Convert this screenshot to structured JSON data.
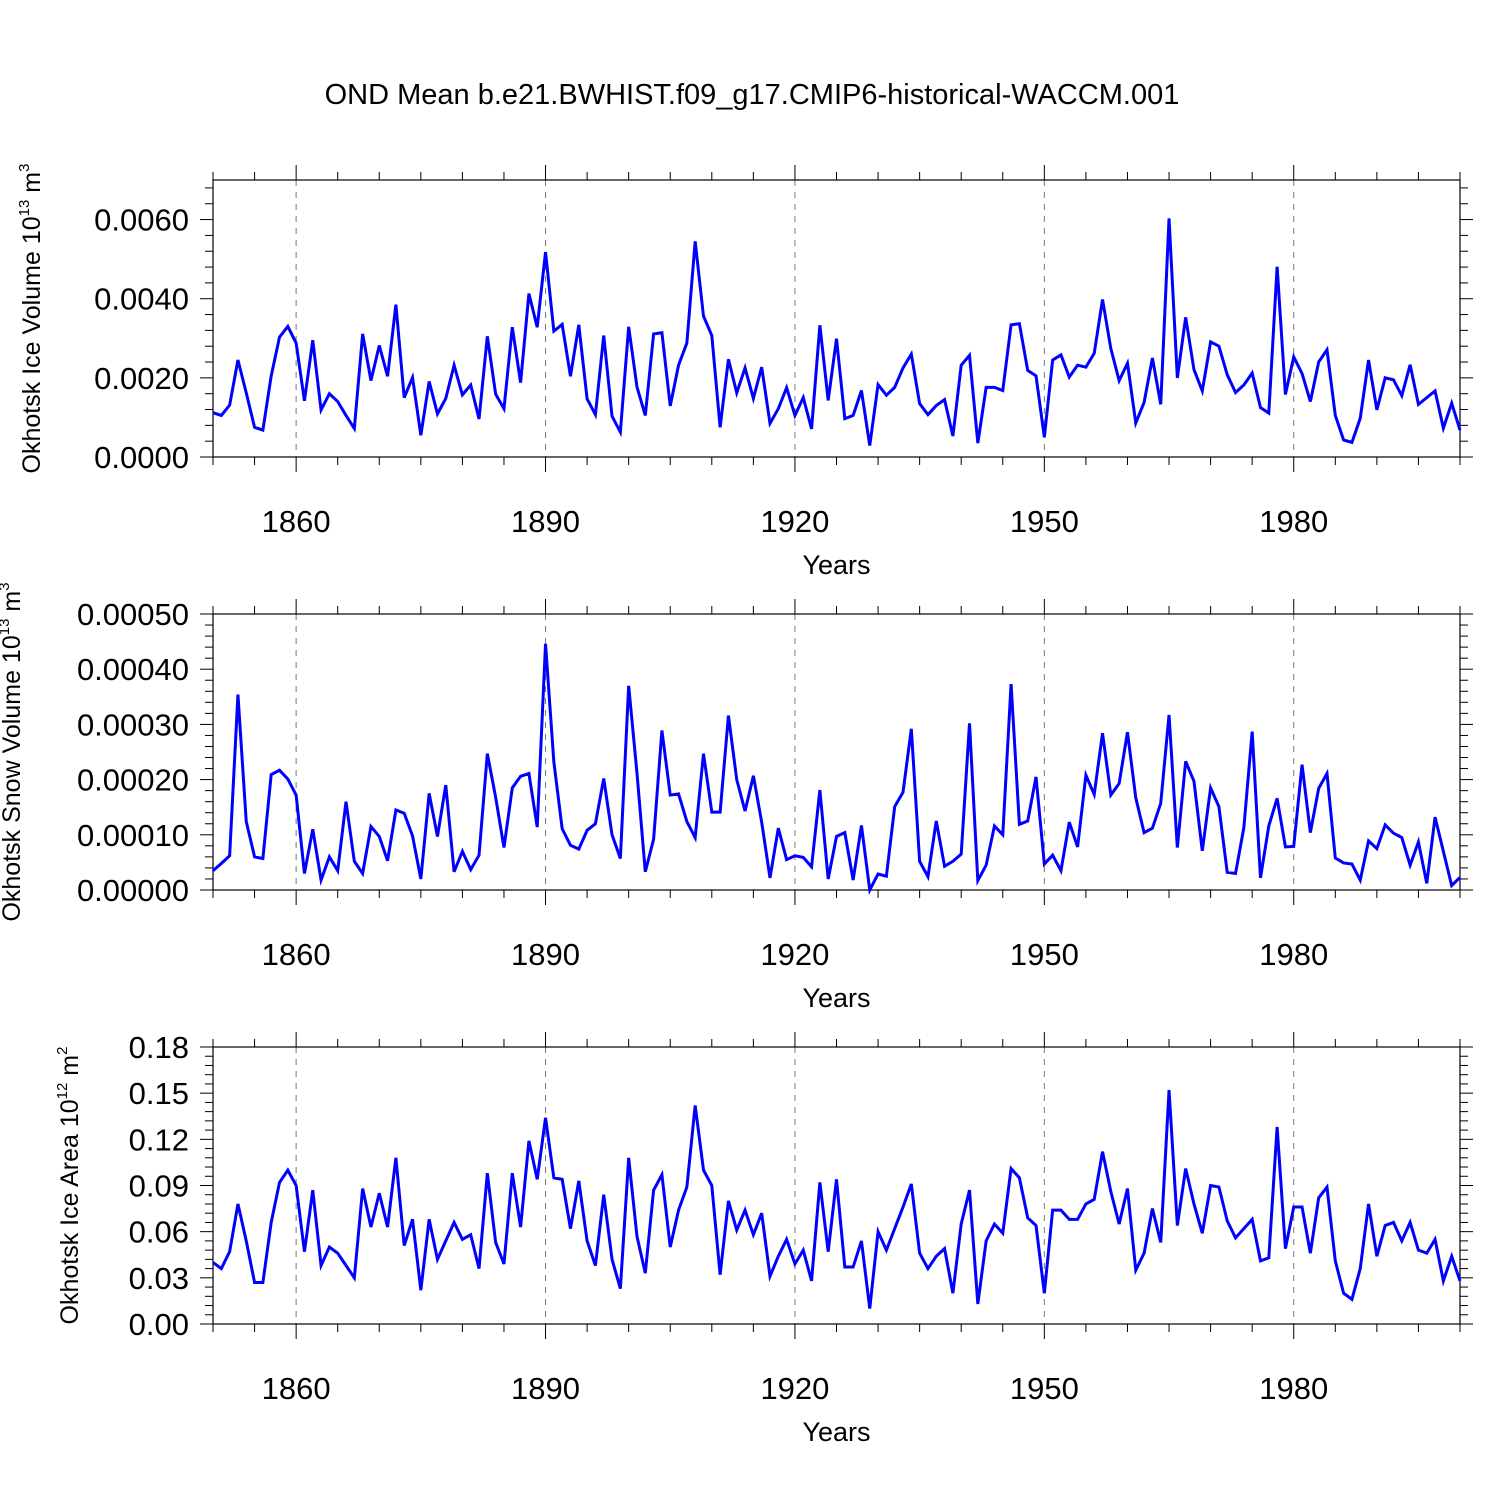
{
  "title": "OND Mean b.e21.BWHIST.f09_g17.CMIP6-historical-WACCM.001",
  "chart_data": [
    {
      "type": "line",
      "title": "OND Mean b.e21.BWHIST.f09_g17.CMIP6-historical-WACCM.001",
      "xlabel": "Years",
      "ylabel": {
        "text": "Okhotsk Ice Volume 10",
        "exp": "13",
        "unit": " m",
        "unit_exp": "3"
      },
      "xlim": [
        1850,
        2000
      ],
      "ylim": [
        0,
        0.007
      ],
      "xticks": [
        1860,
        1890,
        1920,
        1950,
        1980
      ],
      "xtick_labels": [
        "1860",
        "1890",
        "1920",
        "1950",
        "1980"
      ],
      "yticks": [
        0,
        0.002,
        0.004,
        0.006
      ],
      "ytick_labels": [
        "0.0000",
        "0.0020",
        "0.0040",
        "0.0060"
      ],
      "grid": "dashed vertical at major x ticks",
      "color": "#0000ff",
      "series": [
        {
          "name": "Okhotsk Ice Volume",
          "x_start": 1850,
          "values": [
            0.00112,
            0.00105,
            0.00131,
            0.00245,
            0.00162,
            0.00075,
            0.00068,
            0.00205,
            0.00303,
            0.0033,
            0.00288,
            0.00142,
            0.00295,
            0.00119,
            0.0016,
            0.0014,
            0.00105,
            0.00072,
            0.00311,
            0.00193,
            0.00282,
            0.00204,
            0.00385,
            0.0015,
            0.00201,
            0.00055,
            0.00191,
            0.00109,
            0.00148,
            0.00232,
            0.00157,
            0.00182,
            0.00096,
            0.00305,
            0.00159,
            0.00122,
            0.00328,
            0.00188,
            0.00413,
            0.00328,
            0.00518,
            0.00318,
            0.00335,
            0.00204,
            0.00334,
            0.00147,
            0.00107,
            0.00307,
            0.00103,
            0.00063,
            0.00329,
            0.00177,
            0.00105,
            0.00311,
            0.00314,
            0.00129,
            0.00232,
            0.00288,
            0.00545,
            0.00356,
            0.00307,
            0.00075,
            0.00247,
            0.00162,
            0.00225,
            0.00148,
            0.00227,
            0.00085,
            0.00122,
            0.00175,
            0.00105,
            0.0015,
            0.00071,
            0.00333,
            0.00143,
            0.00299,
            0.00097,
            0.00105,
            0.00168,
            0.00029,
            0.00183,
            0.00156,
            0.00176,
            0.00225,
            0.0026,
            0.00135,
            0.00107,
            0.0013,
            0.00145,
            0.00053,
            0.00232,
            0.00257,
            0.00035,
            0.00176,
            0.00176,
            0.00168,
            0.00334,
            0.00337,
            0.00219,
            0.00205,
            0.0005,
            0.00245,
            0.00258,
            0.00202,
            0.00232,
            0.00227,
            0.00262,
            0.00398,
            0.00274,
            0.00193,
            0.00237,
            0.00086,
            0.00138,
            0.0025,
            0.00133,
            0.00603,
            0.002,
            0.00353,
            0.00221,
            0.00167,
            0.00291,
            0.0028,
            0.00208,
            0.00163,
            0.00182,
            0.00212,
            0.00125,
            0.00111,
            0.00481,
            0.00158,
            0.00253,
            0.00211,
            0.0014,
            0.0024,
            0.00271,
            0.00105,
            0.00043,
            0.00037,
            0.00098,
            0.00245,
            0.00119,
            0.002,
            0.00195,
            0.00155,
            0.00233,
            0.00133,
            0.0015,
            0.00167,
            0.00073,
            0.00136,
            0.00068
          ]
        }
      ]
    },
    {
      "type": "line",
      "xlabel": "Years",
      "ylabel": {
        "text": "Okhotsk Snow Volume 10",
        "exp": "13",
        "unit": " m",
        "unit_exp": "3"
      },
      "xlim": [
        1850,
        2000
      ],
      "ylim": [
        0,
        0.0005
      ],
      "xticks": [
        1860,
        1890,
        1920,
        1950,
        1980
      ],
      "xtick_labels": [
        "1860",
        "1890",
        "1920",
        "1950",
        "1980"
      ],
      "yticks": [
        0,
        0.0001,
        0.0002,
        0.0003,
        0.0004,
        0.0005
      ],
      "ytick_labels": [
        "0.00000",
        "0.00010",
        "0.00020",
        "0.00030",
        "0.00040",
        "0.00050"
      ],
      "grid": "dashed vertical at major x ticks",
      "color": "#0000ff",
      "series": [
        {
          "name": "Okhotsk Snow Volume",
          "x_start": 1850,
          "values": [
            3.5e-05,
            4.8e-05,
            6.2e-05,
            0.000354,
            0.000124,
            6e-05,
            5.7e-05,
            0.000209,
            0.000217,
            0.000201,
            0.000172,
            3e-05,
            0.00011,
            1.8e-05,
            6e-05,
            3.5e-05,
            0.00016,
            5.2e-05,
            3e-05,
            0.000115,
            9.7e-05,
            5.3e-05,
            0.000145,
            0.000139,
            9.8e-05,
            2e-05,
            0.000175,
            9.7e-05,
            0.00019,
            3.3e-05,
            7e-05,
            3.7e-05,
            6.3e-05,
            0.000247,
            0.000168,
            7.7e-05,
            0.000185,
            0.000206,
            0.000211,
            0.000114,
            0.000446,
            0.000232,
            0.000111,
            8.1e-05,
            7.4e-05,
            0.000108,
            0.00012,
            0.000202,
            0.0001,
            5.7e-05,
            0.00037,
            0.000212,
            3.3e-05,
            9.2e-05,
            0.000289,
            0.000172,
            0.000174,
            0.000124,
            9.5e-05,
            0.000247,
            0.000141,
            0.000141,
            0.000316,
            0.0002,
            0.000143,
            0.000207,
            0.000123,
            2.2e-05,
            0.000112,
            5.5e-05,
            6.2e-05,
            5.9e-05,
            4.2e-05,
            0.000181,
            2e-05,
            9.7e-05,
            0.000104,
            1.8e-05,
            0.000117,
            0.0,
            2.9e-05,
            2.5e-05,
            0.000151,
            0.000177,
            0.000292,
            5.2e-05,
            2.4e-05,
            0.000125,
            4.3e-05,
            5.2e-05,
            6.5e-05,
            0.000302,
            1.7e-05,
            4.5e-05,
            0.000116,
            0.0001,
            0.000373,
            0.000119,
            0.000125,
            0.000205,
            4.7e-05,
            6.3e-05,
            3.5e-05,
            0.000123,
            7.8e-05,
            0.000208,
            0.000173,
            0.000284,
            0.000172,
            0.000193,
            0.000286,
            0.000167,
            0.000104,
            0.000112,
            0.000157,
            0.000317,
            7.7e-05,
            0.000233,
            0.000197,
            7.1e-05,
            0.000185,
            0.000151,
            3.2e-05,
            3e-05,
            0.000113,
            0.000287,
            2.2e-05,
            0.000116,
            0.000166,
            7.8e-05,
            7.9e-05,
            0.000227,
            0.000104,
            0.000184,
            0.000211,
            5.8e-05,
            4.9e-05,
            4.7e-05,
            1.8e-05,
            8.9e-05,
            7.5e-05,
            0.000118,
            0.000103,
            9.5e-05,
            4.5e-05,
            8.7e-05,
            1.2e-05,
            0.000132,
            7e-05,
            8e-06,
            2.3e-05
          ]
        }
      ]
    },
    {
      "type": "line",
      "xlabel": "Years",
      "ylabel": {
        "text": "Okhotsk Ice Area 10",
        "exp": "12",
        "unit": " m",
        "unit_exp": "2"
      },
      "xlim": [
        1850,
        2000
      ],
      "ylim": [
        0,
        0.18
      ],
      "xticks": [
        1860,
        1890,
        1920,
        1950,
        1980
      ],
      "xtick_labels": [
        "1860",
        "1890",
        "1920",
        "1950",
        "1980"
      ],
      "yticks": [
        0,
        0.03,
        0.06,
        0.09,
        0.12,
        0.15,
        0.18
      ],
      "ytick_labels": [
        "0.00",
        "0.03",
        "0.06",
        "0.09",
        "0.12",
        "0.15",
        "0.18"
      ],
      "grid": "dashed vertical at major x ticks",
      "color": "#0000ff",
      "series": [
        {
          "name": "Okhotsk Ice Area",
          "x_start": 1850,
          "values": [
            0.04,
            0.036,
            0.047,
            0.078,
            0.054,
            0.027,
            0.027,
            0.066,
            0.092,
            0.1,
            0.09,
            0.047,
            0.087,
            0.038,
            0.05,
            0.046,
            0.038,
            0.03,
            0.088,
            0.063,
            0.085,
            0.063,
            0.108,
            0.051,
            0.068,
            0.022,
            0.068,
            0.042,
            0.054,
            0.066,
            0.055,
            0.058,
            0.036,
            0.098,
            0.053,
            0.039,
            0.098,
            0.063,
            0.119,
            0.094,
            0.134,
            0.095,
            0.094,
            0.062,
            0.093,
            0.054,
            0.038,
            0.084,
            0.042,
            0.023,
            0.108,
            0.057,
            0.033,
            0.087,
            0.097,
            0.05,
            0.074,
            0.089,
            0.142,
            0.1,
            0.09,
            0.032,
            0.08,
            0.061,
            0.074,
            0.058,
            0.072,
            0.031,
            0.044,
            0.055,
            0.039,
            0.048,
            0.028,
            0.092,
            0.047,
            0.094,
            0.037,
            0.037,
            0.054,
            0.01,
            0.06,
            0.048,
            0.062,
            0.076,
            0.091,
            0.046,
            0.036,
            0.044,
            0.049,
            0.02,
            0.065,
            0.087,
            0.013,
            0.054,
            0.065,
            0.059,
            0.101,
            0.095,
            0.069,
            0.064,
            0.02,
            0.074,
            0.074,
            0.068,
            0.068,
            0.078,
            0.081,
            0.112,
            0.086,
            0.065,
            0.088,
            0.035,
            0.046,
            0.075,
            0.053,
            0.152,
            0.064,
            0.101,
            0.078,
            0.059,
            0.09,
            0.089,
            0.067,
            0.056,
            0.062,
            0.068,
            0.041,
            0.043,
            0.128,
            0.049,
            0.076,
            0.076,
            0.046,
            0.082,
            0.089,
            0.041,
            0.02,
            0.016,
            0.036,
            0.078,
            0.044,
            0.064,
            0.066,
            0.054,
            0.066,
            0.048,
            0.046,
            0.055,
            0.028,
            0.044,
            0.028
          ]
        }
      ]
    }
  ]
}
